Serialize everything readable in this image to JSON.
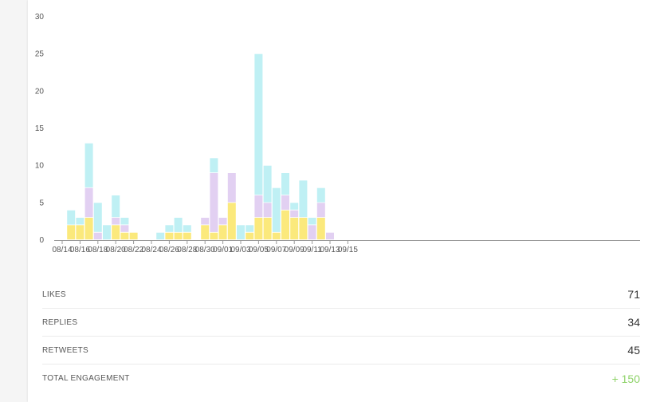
{
  "chart_data": {
    "type": "bar",
    "stacked": true,
    "ylim": [
      0,
      30
    ],
    "yticks": [
      0,
      5,
      10,
      15,
      20,
      25,
      30
    ],
    "xticks": [
      "08/14",
      "08/16",
      "08/18",
      "08/20",
      "08/22",
      "08/24",
      "08/26",
      "08/28",
      "08/30",
      "09/01",
      "09/03",
      "09/05",
      "09/07",
      "09/09",
      "09/11",
      "09/13",
      "09/15"
    ],
    "grid": false,
    "categories": [
      "08/15",
      "08/16",
      "08/17",
      "08/18",
      "08/19",
      "08/20",
      "08/21",
      "08/22",
      "08/23",
      "08/24",
      "08/25",
      "08/26",
      "08/27",
      "08/28",
      "08/29",
      "08/30",
      "08/31",
      "09/01",
      "09/02",
      "09/03",
      "09/04",
      "09/05",
      "09/06",
      "09/07",
      "09/08",
      "09/09",
      "09/10",
      "09/11",
      "09/12",
      "09/13",
      "09/14"
    ],
    "series": [
      {
        "color": "#fbe97c",
        "values": [
          2,
          2,
          3,
          0,
          0,
          2,
          1,
          1,
          0,
          0,
          0,
          1,
          1,
          1,
          0,
          2,
          1,
          2,
          5,
          0,
          1,
          3,
          3,
          1,
          4,
          3,
          3,
          0,
          3,
          0,
          0
        ]
      },
      {
        "color": "#e2d0f2",
        "values": [
          0,
          0,
          4,
          1,
          0,
          1,
          1,
          0,
          0,
          0,
          0,
          0,
          0,
          0,
          0,
          1,
          8,
          1,
          4,
          0,
          0,
          3,
          2,
          0,
          2,
          1,
          0,
          2,
          2,
          1,
          0
        ]
      },
      {
        "color": "#bff0f4",
        "values": [
          2,
          1,
          6,
          4,
          2,
          3,
          1,
          0,
          0,
          0,
          1,
          1,
          2,
          1,
          0,
          0,
          2,
          0,
          0,
          2,
          1,
          19,
          5,
          6,
          3,
          1,
          5,
          1,
          2,
          0,
          0
        ]
      }
    ]
  },
  "stats": [
    {
      "label": "LIKES",
      "value": "71"
    },
    {
      "label": "REPLIES",
      "value": "34"
    },
    {
      "label": "RETWEETS",
      "value": "45"
    },
    {
      "label": "TOTAL ENGAGEMENT",
      "value": "+ 150"
    }
  ]
}
